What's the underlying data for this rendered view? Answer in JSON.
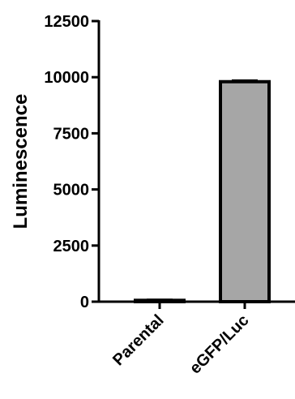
{
  "chart_data": {
    "type": "bar",
    "title": "",
    "xlabel": "",
    "ylabel": "Luminescence",
    "categories": [
      "Parental",
      "eGFP/Luc"
    ],
    "values": [
      60,
      9800
    ],
    "errors": [
      30,
      60
    ],
    "ylim": [
      0,
      12500
    ],
    "yticks": [
      0,
      2500,
      5000,
      7500,
      10000,
      12500
    ],
    "grid": false,
    "legend": "none",
    "colors": {
      "bar_fill": "#a6a6a6",
      "bar_stroke": "#000000",
      "axis": "#000000"
    }
  }
}
